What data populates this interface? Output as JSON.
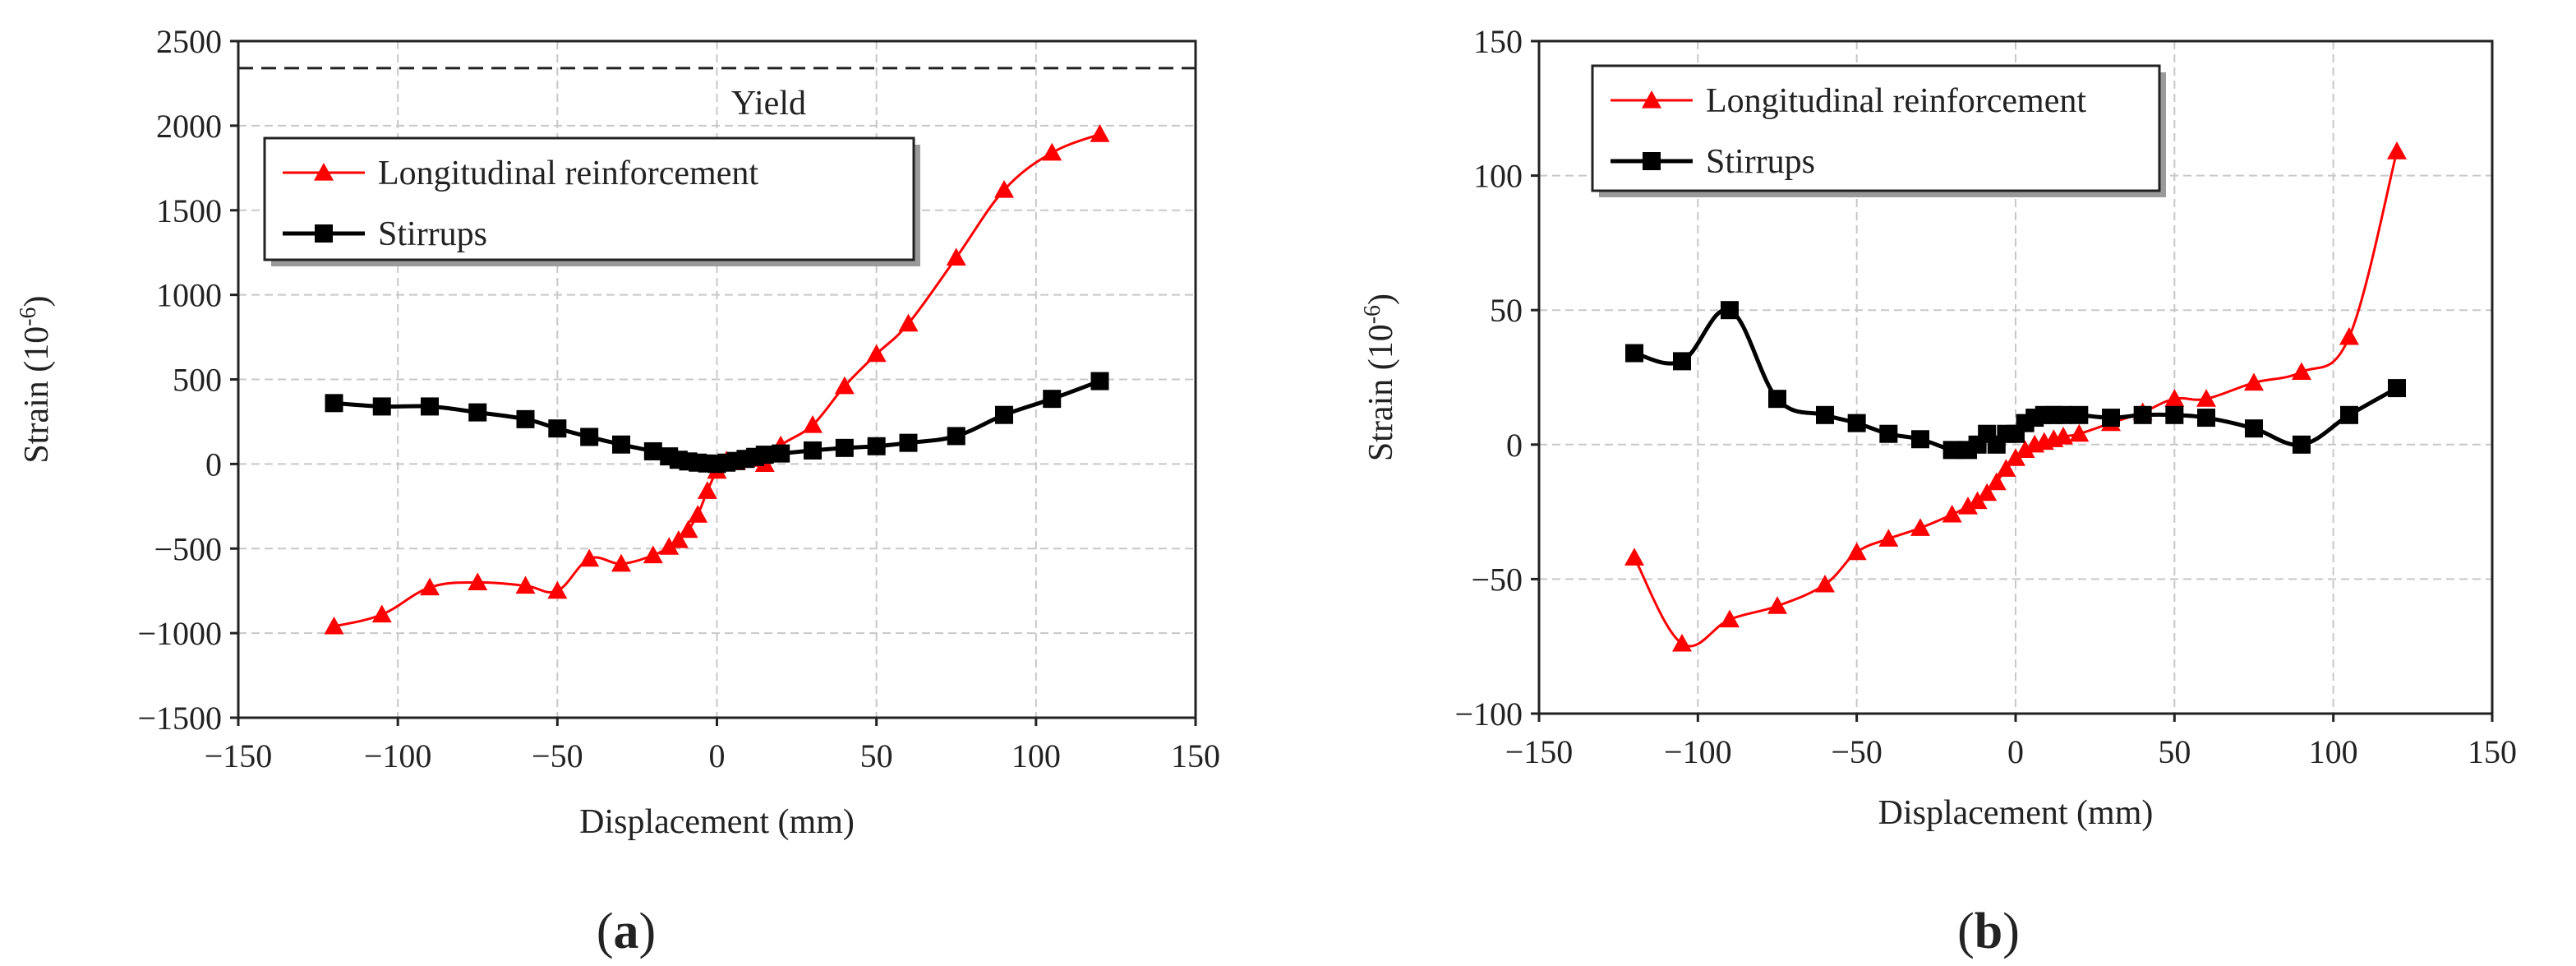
{
  "figure": {
    "caption_a": "(a)",
    "caption_b": "(b)"
  },
  "chart_data": [
    {
      "type": "line",
      "panel": "a",
      "xlabel": "Displacement (mm)",
      "ylabel_main": "Strain (10",
      "ylabel_exp": "-6",
      "ylabel_close": ")",
      "xlim": [
        -150,
        150
      ],
      "ylim": [
        -1500,
        2500
      ],
      "xticks": [
        -150,
        -100,
        -50,
        0,
        50,
        100,
        150
      ],
      "yticks": [
        -1500,
        -1000,
        -500,
        0,
        500,
        1000,
        1500,
        2000,
        2500
      ],
      "grid": true,
      "legend_position": "upper-left",
      "annotation": {
        "text": "Yield",
        "value": 2340
      },
      "series": [
        {
          "name": "Longitudinal reinforcement",
          "color": "#ff0000",
          "marker": "triangle",
          "x": [
            -120,
            -105,
            -90,
            -75,
            -60,
            -50,
            -40,
            -30,
            -20,
            -15,
            -12,
            -9,
            -6,
            -3,
            0,
            3,
            6,
            9,
            12,
            15,
            20,
            30,
            40,
            50,
            60,
            75,
            90,
            105,
            120
          ],
          "y": [
            -960,
            -890,
            -730,
            -700,
            -720,
            -750,
            -560,
            -590,
            -540,
            -490,
            -450,
            -390,
            -300,
            -160,
            -40,
            20,
            10,
            30,
            30,
            0,
            110,
            230,
            460,
            650,
            830,
            1220,
            1620,
            1840,
            1950
          ]
        },
        {
          "name": "Stirrups",
          "color": "#000000",
          "marker": "square",
          "x": [
            -120,
            -105,
            -90,
            -75,
            -60,
            -50,
            -40,
            -30,
            -20,
            -15,
            -12,
            -9,
            -6,
            -3,
            0,
            3,
            6,
            9,
            12,
            15,
            20,
            30,
            40,
            50,
            60,
            75,
            90,
            105,
            120
          ],
          "y": [
            360,
            340,
            340,
            305,
            265,
            210,
            160,
            115,
            75,
            45,
            25,
            15,
            8,
            3,
            0,
            8,
            18,
            30,
            42,
            55,
            62,
            80,
            95,
            105,
            125,
            165,
            290,
            385,
            490
          ]
        }
      ]
    },
    {
      "type": "line",
      "panel": "b",
      "xlabel": "Displacement (mm)",
      "ylabel_main": "Strain (10",
      "ylabel_exp": "-6",
      "ylabel_close": ")",
      "xlim": [
        -150,
        150
      ],
      "ylim": [
        -100,
        150
      ],
      "xticks": [
        -150,
        -100,
        -50,
        0,
        50,
        100,
        150
      ],
      "yticks": [
        -100,
        -50,
        0,
        50,
        100,
        150
      ],
      "grid": true,
      "legend_position": "upper-left",
      "series": [
        {
          "name": "Longitudinal reinforcement",
          "color": "#ff0000",
          "marker": "triangle",
          "x": [
            -120,
            -105,
            -90,
            -75,
            -60,
            -50,
            -40,
            -30,
            -20,
            -15,
            -12,
            -9,
            -6,
            -3,
            0,
            3,
            6,
            9,
            12,
            15,
            20,
            30,
            40,
            50,
            60,
            75,
            90,
            105,
            120
          ],
          "y": [
            -42,
            -74,
            -65,
            -60,
            -52,
            -40,
            -35,
            -31,
            -26,
            -23,
            -21,
            -18,
            -14,
            -9,
            -5,
            -2,
            0,
            1,
            2,
            3,
            4,
            8,
            12,
            17,
            17,
            23,
            27,
            40,
            109
          ]
        },
        {
          "name": "Stirrups",
          "color": "#000000",
          "marker": "square",
          "x": [
            -120,
            -105,
            -90,
            -75,
            -60,
            -50,
            -40,
            -30,
            -20,
            -15,
            -12,
            -9,
            -6,
            -3,
            0,
            3,
            6,
            9,
            12,
            15,
            20,
            30,
            40,
            50,
            60,
            75,
            90,
            105,
            120
          ],
          "y": [
            34,
            31,
            50,
            17,
            11,
            8,
            4,
            2,
            -2,
            -2,
            0,
            4,
            0,
            4,
            4,
            8,
            10,
            11,
            11,
            11,
            11,
            10,
            11,
            11,
            10,
            6,
            0,
            11,
            21
          ]
        }
      ]
    }
  ]
}
